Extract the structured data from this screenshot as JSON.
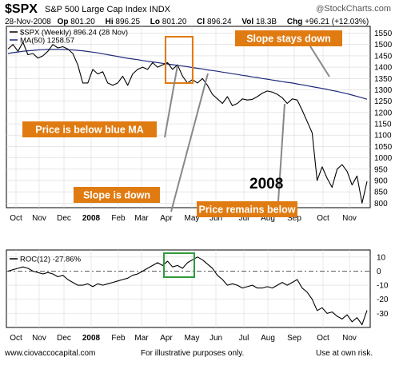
{
  "header": {
    "ticker": "$SPX",
    "name": "S&P 500 Large Cap Index",
    "exchange": "INDX",
    "brand": "StockCharts.com",
    "brand_prefix": "@",
    "quote": {
      "date": "28-Nov-2008",
      "op_label": "Op",
      "op_value": "801.20",
      "hi_label": "Hi",
      "hi_value": "896.25",
      "lo_label": "Lo",
      "lo_value": "801.20",
      "cl_label": "Cl",
      "cl_value": "896.24",
      "vol_label": "Vol",
      "vol_value": "18.3B",
      "chg_label": "Chg",
      "chg_value": "+96.21 (+12.03%)"
    }
  },
  "footer": {
    "website": "www.ciovaccocapital.com",
    "disclaimer": "For illustrative purposes only.",
    "risk": "Use at own risk."
  },
  "colors": {
    "price": "#000000",
    "ma": "#1f2a7a",
    "annotation": "#e07b12",
    "highlight_box_top": "#e07b12",
    "highlight_box_roc": "#2e9a3c",
    "background": "#ffffff",
    "grid": "#d9d9d9"
  },
  "chart_data": [
    {
      "type": "line",
      "title": "$SPX S&P 500 Large Cap Index INDX",
      "legend": [
        "$SPX (Weekly) 896.24 (28 Nov)",
        "MA(50) 1258.57"
      ],
      "legend_placement": "top-left",
      "ylim": [
        780,
        1580
      ],
      "y_ticks": [
        800,
        850,
        900,
        950,
        1000,
        1050,
        1100,
        1150,
        1200,
        1250,
        1300,
        1350,
        1400,
        1450,
        1500,
        1550
      ],
      "x_ticks": [
        "Oct",
        "Nov",
        "Dec",
        "2008",
        "Feb",
        "Mar",
        "Apr",
        "May",
        "Jun",
        "Jul",
        "Aug",
        "Sep",
        "Oct",
        "Nov"
      ],
      "grid": true,
      "series": [
        {
          "name": "$SPX (Weekly) 896.24 (28 Nov)",
          "values": [
            1480,
            1500,
            1470,
            1510,
            1455,
            1460,
            1440,
            1450,
            1470,
            1500,
            1485,
            1490,
            1480,
            1460,
            1410,
            1330,
            1330,
            1390,
            1370,
            1380,
            1330,
            1320,
            1330,
            1360,
            1320,
            1370,
            1390,
            1400,
            1390,
            1420,
            1400,
            1410,
            1420,
            1390,
            1410,
            1360,
            1330,
            1345,
            1330,
            1350,
            1320,
            1280,
            1260,
            1240,
            1270,
            1230,
            1240,
            1260,
            1255,
            1258,
            1270,
            1285,
            1295,
            1290,
            1280,
            1265,
            1240,
            1260,
            1255,
            1210,
            1160,
            1110,
            900,
            960,
            910,
            870,
            950,
            970,
            940,
            880,
            920,
            800,
            896
          ]
        },
        {
          "name": "MA(50) 1258.57",
          "values": [
            1460,
            1464,
            1467,
            1470,
            1472,
            1474,
            1476,
            1477,
            1478,
            1478,
            1478,
            1478,
            1477,
            1476,
            1474,
            1472,
            1469,
            1466,
            1463,
            1459,
            1455,
            1451,
            1447,
            1443,
            1439,
            1436,
            1433,
            1429,
            1426,
            1423,
            1420,
            1417,
            1414,
            1411,
            1408,
            1405,
            1402,
            1398,
            1395,
            1392,
            1388,
            1385,
            1382,
            1378,
            1375,
            1371,
            1368,
            1364,
            1361,
            1357,
            1354,
            1350,
            1347,
            1343,
            1340,
            1336,
            1333,
            1330,
            1326,
            1322,
            1318,
            1314,
            1310,
            1306,
            1302,
            1297,
            1293,
            1288,
            1283,
            1277,
            1271,
            1265,
            1258.57
          ]
        }
      ],
      "annotations": [
        "Slope stays down",
        "Price is below blue MA",
        "Slope is down",
        "Price remains below",
        "2008"
      ]
    },
    {
      "type": "line",
      "legend": [
        "ROC(12) -27.86%"
      ],
      "legend_placement": "top-left",
      "ylim": [
        -40,
        15
      ],
      "y_ticks": [
        10,
        0,
        -10,
        -20,
        -30
      ],
      "x_ticks": [
        "Oct",
        "Nov",
        "Dec",
        "2008",
        "Feb",
        "Mar",
        "Apr",
        "May",
        "Jun",
        "Jul",
        "Aug",
        "Sep",
        "Oct",
        "Nov"
      ],
      "grid": true,
      "series": [
        {
          "name": "ROC(12) -27.86%",
          "values": [
            0,
            1,
            2,
            3,
            2,
            0,
            -1,
            -2,
            -1,
            -2,
            -4,
            -3,
            -6,
            -8,
            -10,
            -10,
            -9,
            -11,
            -9,
            -10,
            -9,
            -8,
            -7,
            -6,
            -5,
            -3,
            -2,
            0,
            2,
            4,
            6,
            4,
            7,
            3,
            4,
            2,
            6,
            8,
            10,
            8,
            5,
            2,
            -3,
            -6,
            -10,
            -9,
            -10,
            -12,
            -11,
            -10,
            -12,
            -12,
            -11,
            -12,
            -10,
            -8,
            -10,
            -8,
            -6,
            -12,
            -15,
            -20,
            -28,
            -26,
            -30,
            -29,
            -32,
            -34,
            -31,
            -36,
            -33,
            -38,
            -27.86
          ]
        }
      ]
    }
  ]
}
